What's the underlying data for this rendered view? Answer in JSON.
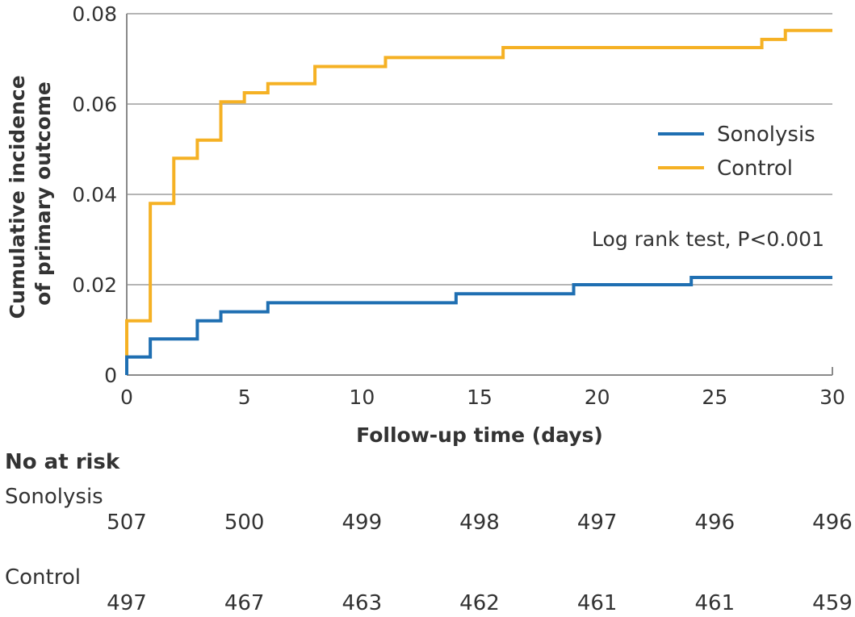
{
  "chart_data": {
    "type": "line",
    "style": "step",
    "xlabel": "Follow-up time (days)",
    "ylabel_lines": [
      "Cumulative incidence",
      "of primary outcome"
    ],
    "xlim": [
      0,
      30
    ],
    "ylim": [
      0,
      0.08
    ],
    "x_ticks": [
      0,
      5,
      10,
      15,
      20,
      25,
      30
    ],
    "x_tick_labels": [
      "0",
      "5",
      "10",
      "15",
      "20",
      "25",
      "30"
    ],
    "y_ticks": [
      0,
      0.02,
      0.04,
      0.06,
      0.08
    ],
    "y_tick_labels": [
      "0",
      "0.02",
      "0.04",
      "0.06",
      "0.08"
    ],
    "grid": "horizontal",
    "legend_position": "right",
    "annotation": "Log rank test, P<0.001",
    "series": [
      {
        "name": "Sonolysis",
        "color": "#1f6fb2",
        "points": [
          [
            0,
            0
          ],
          [
            0,
            0.004
          ],
          [
            1,
            0.008
          ],
          [
            3,
            0.012
          ],
          [
            4,
            0.014
          ],
          [
            6,
            0.016
          ],
          [
            14,
            0.018
          ],
          [
            19,
            0.02
          ],
          [
            24,
            0.0216
          ],
          [
            30,
            0.0216
          ]
        ]
      },
      {
        "name": "Control",
        "color": "#f5b124",
        "points": [
          [
            0,
            0.004
          ],
          [
            0,
            0.012
          ],
          [
            1,
            0.038
          ],
          [
            2,
            0.048
          ],
          [
            3,
            0.052
          ],
          [
            4,
            0.0605
          ],
          [
            5,
            0.0625
          ],
          [
            6,
            0.0645
          ],
          [
            8,
            0.0683
          ],
          [
            11,
            0.0703
          ],
          [
            16,
            0.0725
          ],
          [
            27,
            0.0743
          ],
          [
            28,
            0.0763
          ],
          [
            30,
            0.0763
          ]
        ]
      }
    ]
  },
  "risk_table": {
    "title": "No at risk",
    "times": [
      0,
      5,
      10,
      15,
      20,
      25,
      30
    ],
    "groups": [
      {
        "name": "Sonolysis",
        "counts": [
          "507",
          "500",
          "499",
          "498",
          "497",
          "496",
          "496"
        ]
      },
      {
        "name": "Control",
        "counts": [
          "497",
          "467",
          "463",
          "462",
          "461",
          "461",
          "459"
        ]
      }
    ]
  }
}
